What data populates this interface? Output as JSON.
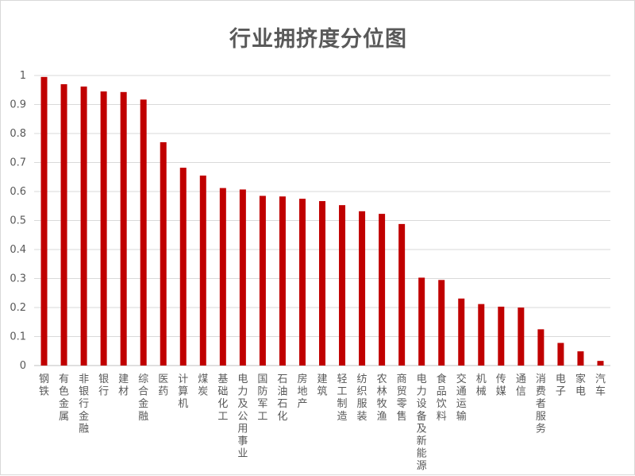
{
  "chart_data": {
    "type": "bar",
    "title": "行业拥挤度分位图",
    "xlabel": "",
    "ylabel": "",
    "ylim": [
      0,
      1
    ],
    "yticks": [
      "0",
      "0.1",
      "0.2",
      "0.3",
      "0.4",
      "0.5",
      "0.6",
      "0.7",
      "0.8",
      "0.9",
      "1"
    ],
    "grid": true,
    "legend": "none",
    "bar_color": "#c00000",
    "categories": [
      "钢铁",
      "有色金属",
      "非银行金融",
      "银行",
      "建材",
      "综合金融",
      "医药",
      "计算机",
      "煤炭",
      "基础化工",
      "电力及公用事业",
      "国防军工",
      "石油石化",
      "房地产",
      "建筑",
      "轻工制造",
      "纺织服装",
      "农林牧渔",
      "商贸零售",
      "电力设备及新能源",
      "食品饮料",
      "交通运输",
      "机械",
      "传媒",
      "通信",
      "消费者服务",
      "电子",
      "家电",
      "汽车"
    ],
    "values": [
      0.995,
      0.97,
      0.962,
      0.945,
      0.943,
      0.917,
      0.77,
      0.682,
      0.655,
      0.612,
      0.607,
      0.585,
      0.583,
      0.575,
      0.567,
      0.553,
      0.532,
      0.523,
      0.488,
      0.303,
      0.295,
      0.231,
      0.212,
      0.203,
      0.2,
      0.125,
      0.078,
      0.049,
      0.016
    ]
  }
}
